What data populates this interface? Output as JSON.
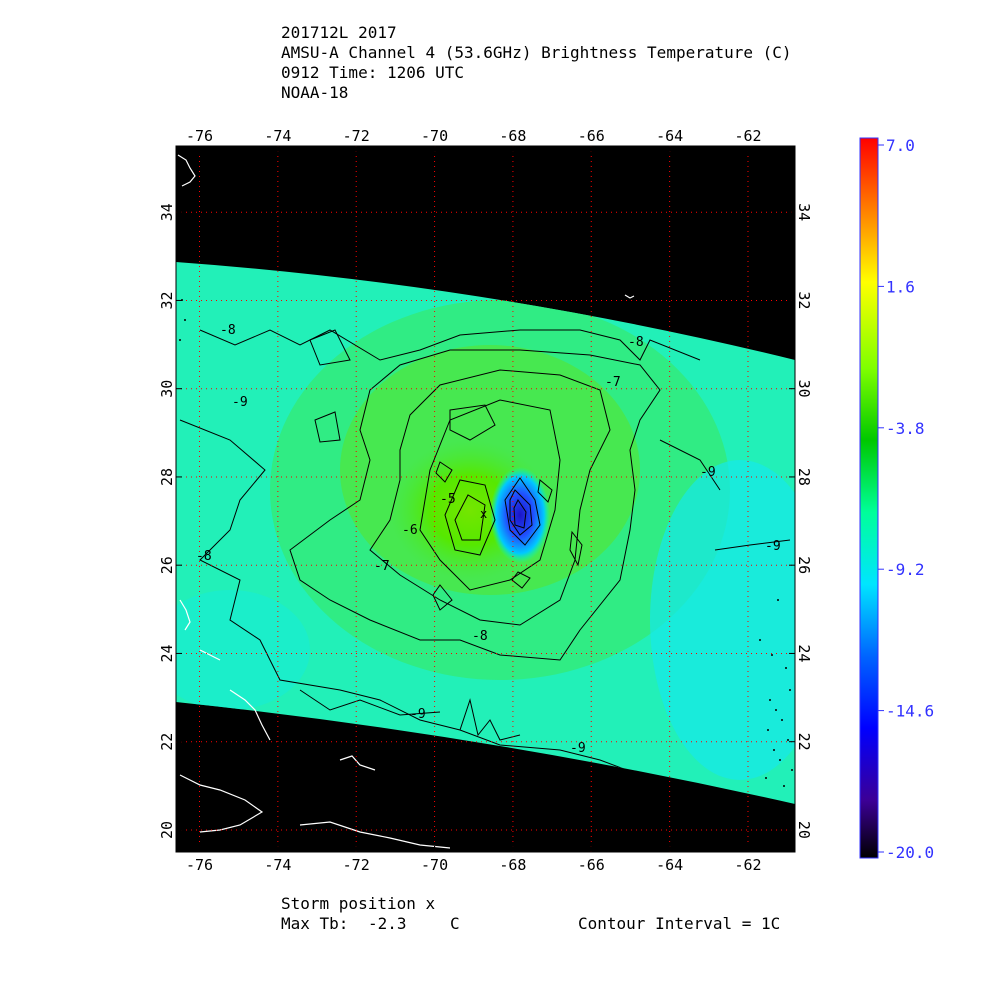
{
  "header": {
    "line1": "201712L 2017",
    "line2": "AMSU-A Channel 4 (53.6GHz) Brightness Temperature (C)",
    "line3": "0912 Time: 1206 UTC",
    "line4": "NOAA-18"
  },
  "map": {
    "lon_ticks": [
      "-76",
      "-74",
      "-72",
      "-70",
      "-68",
      "-66",
      "-64",
      "-62"
    ],
    "lat_ticks": [
      "20",
      "22",
      "24",
      "26",
      "28",
      "30",
      "32",
      "34"
    ],
    "lon_range": [
      -76.6,
      -60.8
    ],
    "lat_range": [
      19.5,
      35.5
    ],
    "grid_color": "#ff0000",
    "no_data_color": "#000000",
    "contour_labels": [
      "-8",
      "-9",
      "-8",
      "-5",
      "-6",
      "-7",
      "-8",
      "-9",
      "-9",
      "-9",
      "-8",
      "-7",
      "-9"
    ],
    "storm_marker": "x"
  },
  "colorbar": {
    "labels": [
      "7.0",
      "1.6",
      "-3.8",
      "-9.2",
      "-14.6",
      "-20.0"
    ],
    "label_color": "#3232ff",
    "stops": [
      "#ff0000",
      "#ff7f00",
      "#ffff00",
      "#7fff00",
      "#00c800",
      "#00ff9a",
      "#00e5ff",
      "#0064ff",
      "#0000ff",
      "#3c0096",
      "#000000"
    ]
  },
  "footer": {
    "storm_position": "Storm position x",
    "max_tb_label": "Max Tb:",
    "max_tb_value": "-2.3",
    "max_tb_unit": "C",
    "contour_interval": "Contour Interval = 1C"
  }
}
